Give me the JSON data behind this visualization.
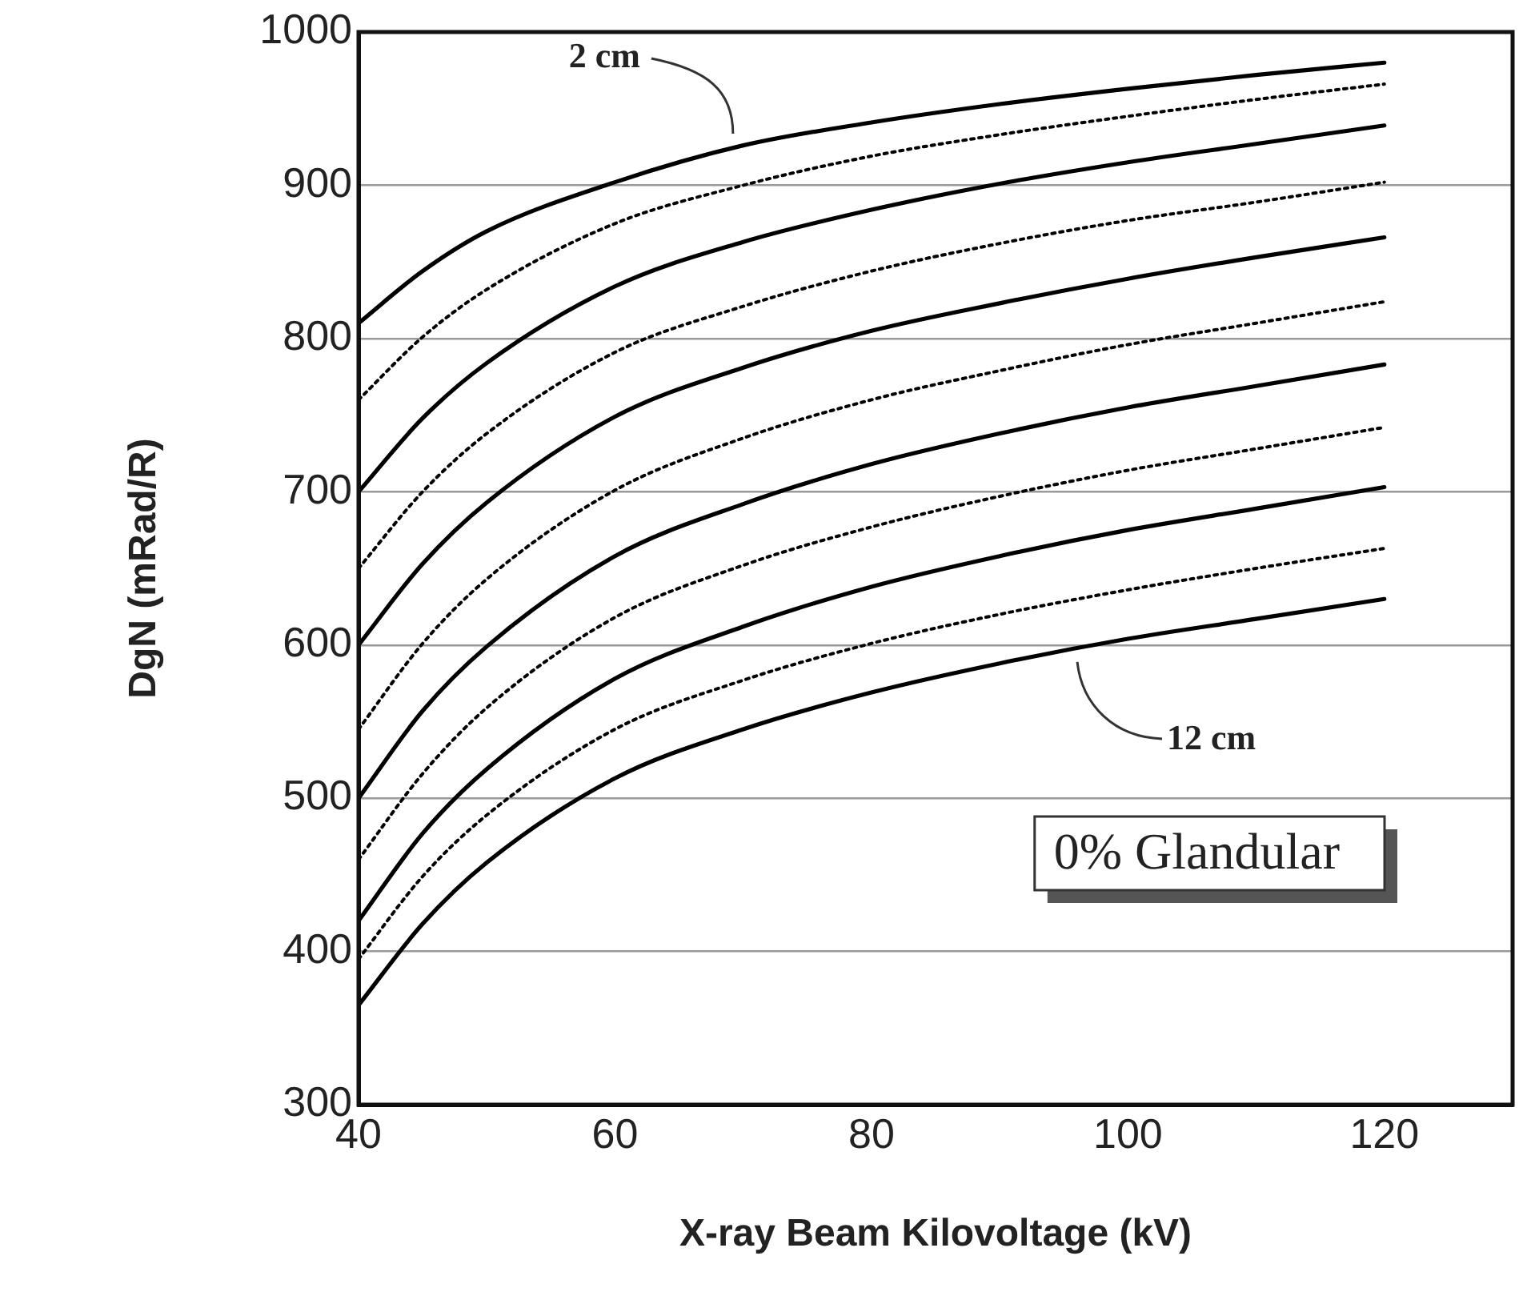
{
  "chart_data": {
    "type": "line",
    "xlabel": "X-ray Beam Kilovoltage (kV)",
    "ylabel": "DgN (mRad/R)",
    "x": [
      40,
      45,
      50,
      60,
      70,
      80,
      90,
      100,
      110,
      120
    ],
    "series": [
      {
        "color": "#000000",
        "line_style": "solid",
        "values": [
          810,
          844,
          870,
          902,
          926,
          941,
          953,
          963,
          972,
          980
        ]
      },
      {
        "color": "#000000",
        "line_style": "dotted",
        "values": [
          760,
          801,
          832,
          875,
          900,
          919,
          933,
          945,
          956,
          966
        ]
      },
      {
        "color": "#000000",
        "line_style": "solid",
        "values": [
          700,
          748,
          784,
          834,
          863,
          884,
          901,
          915,
          927,
          939
        ]
      },
      {
        "color": "#000000",
        "line_style": "dotted",
        "values": [
          650,
          700,
          738,
          791,
          821,
          844,
          862,
          877,
          889,
          902
        ]
      },
      {
        "color": "#000000",
        "line_style": "solid",
        "values": [
          600,
          653,
          693,
          749,
          781,
          805,
          823,
          839,
          853,
          866
        ]
      },
      {
        "color": "#000000",
        "line_style": "dotted",
        "values": [
          545,
          601,
          643,
          701,
          735,
          760,
          779,
          796,
          810,
          824
        ]
      },
      {
        "color": "#000000",
        "line_style": "solid",
        "values": [
          500,
          557,
          599,
          658,
          692,
          718,
          738,
          755,
          769,
          783
        ]
      },
      {
        "color": "#000000",
        "line_style": "dotted",
        "values": [
          460,
          516,
          559,
          618,
          652,
          677,
          697,
          714,
          728,
          742
        ]
      },
      {
        "color": "#000000",
        "line_style": "solid",
        "values": [
          420,
          477,
          519,
          578,
          612,
          638,
          658,
          675,
          689,
          703
        ]
      },
      {
        "color": "#000000",
        "line_style": "dotted",
        "values": [
          395,
          449,
          489,
          545,
          577,
          601,
          620,
          636,
          650,
          663
        ]
      },
      {
        "color": "#000000",
        "line_style": "solid",
        "values": [
          365,
          418,
          458,
          513,
          545,
          569,
          588,
          604,
          617,
          630
        ]
      }
    ],
    "xlim": [
      40,
      130
    ],
    "xticks": [
      40,
      60,
      80,
      100,
      120
    ],
    "ylim": [
      300,
      1000
    ],
    "yticks": [
      300,
      400,
      500,
      600,
      700,
      800,
      900,
      1000
    ],
    "grid": "y",
    "legend": false,
    "marker": "none",
    "annotations": [
      "2 cm",
      "12 cm",
      "0% Glandular"
    ]
  }
}
